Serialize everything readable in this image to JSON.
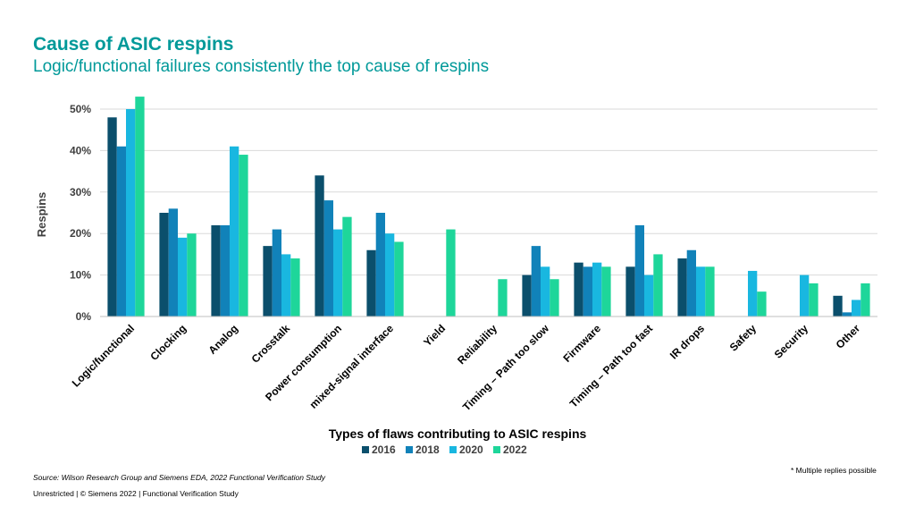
{
  "header": {
    "title": "Cause of ASIC respins",
    "subtitle": "Logic/functional failures consistently the top cause of respins"
  },
  "footer": {
    "source": "Source:  Wilson Research Group and Siemens EDA, 2022 Functional Verification Study",
    "copyright": "Unrestricted | © Siemens 2022 |  Functional Verification Study",
    "note": "* Multiple replies possible"
  },
  "colors": {
    "series": [
      "#0b4f6c",
      "#1182b9",
      "#19b7e0",
      "#1ed69a"
    ],
    "grid": "#d9d9d9",
    "text": "#404040"
  },
  "chart_data": {
    "type": "bar",
    "xlabel": "Types of flaws contributing to ASIC respins",
    "ylabel": "Respins",
    "ylim": [
      0,
      50
    ],
    "yticks": [
      "0%",
      "10%",
      "20%",
      "30%",
      "40%",
      "50%"
    ],
    "grid": true,
    "legend_position": "bottom",
    "categories": [
      "Logic/functional",
      "Clocking",
      "Analog",
      "Crosstalk",
      "Power consumption",
      "mixed-signal interface",
      "Yield",
      "Reliability",
      "Timing – Path too slow",
      "Firmware",
      "Timing – Path too fast",
      "IR drops",
      "Safety",
      "Security",
      "Other"
    ],
    "series": [
      {
        "name": "2016",
        "values": [
          48,
          25,
          22,
          17,
          34,
          16,
          null,
          null,
          10,
          13,
          12,
          14,
          null,
          null,
          5
        ]
      },
      {
        "name": "2018",
        "values": [
          41,
          26,
          22,
          21,
          28,
          25,
          null,
          null,
          17,
          12,
          22,
          16,
          null,
          null,
          1
        ]
      },
      {
        "name": "2020",
        "values": [
          50,
          19,
          41,
          15,
          21,
          20,
          null,
          null,
          12,
          13,
          10,
          12,
          11,
          10,
          4
        ]
      },
      {
        "name": "2022",
        "values": [
          53,
          20,
          39,
          14,
          24,
          18,
          21,
          9,
          9,
          12,
          15,
          12,
          6,
          8,
          8
        ]
      }
    ]
  }
}
